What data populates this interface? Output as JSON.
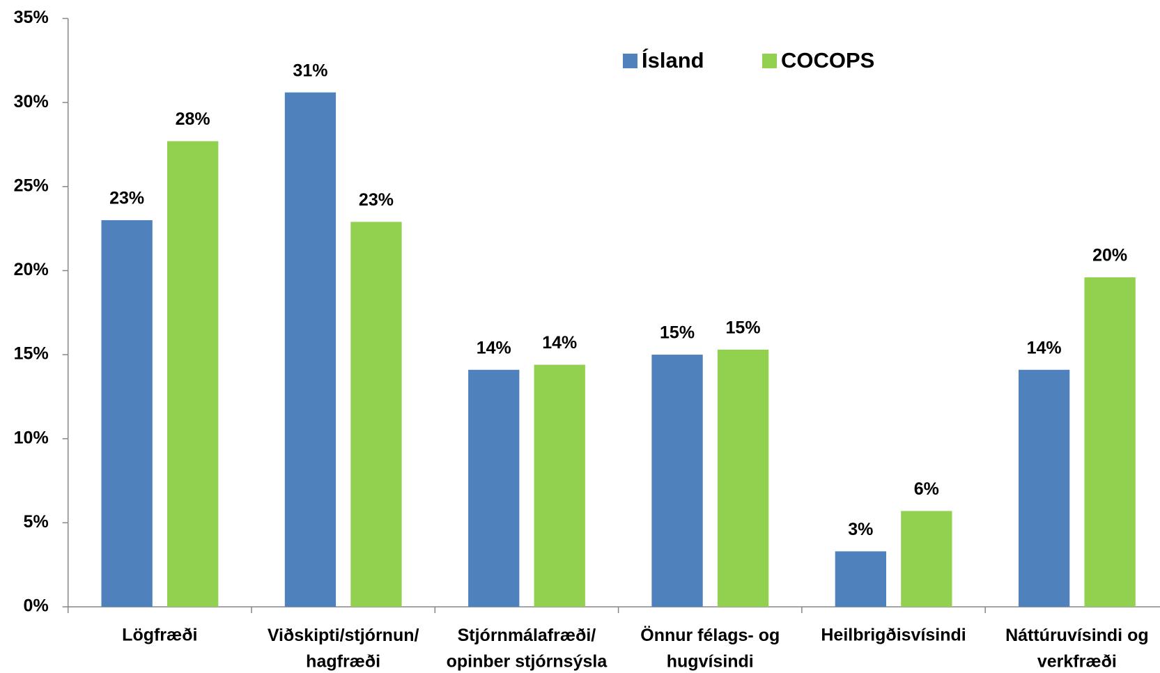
{
  "chart_data": {
    "type": "bar",
    "categories": [
      "Lögfræði",
      "Viðskipti/stjórnun/\nhagfræði",
      "Stjórnmálafræði/\nopinber stjórnsýsla",
      "Önnur félags- og\nhugvísindi",
      "Heilbrigðisvísindi",
      "Náttúruvísindi og\nverkfræði"
    ],
    "series": [
      {
        "name": "Ísland",
        "color": "#4f81bd",
        "values": [
          23.0,
          30.6,
          14.1,
          15.0,
          3.3,
          14.1
        ],
        "value_labels": [
          "23%",
          "31%",
          "14%",
          "15%",
          "3%",
          "14%"
        ]
      },
      {
        "name": "COCOPS",
        "color": "#92d050",
        "values": [
          27.7,
          22.9,
          14.4,
          15.3,
          5.7,
          19.6
        ],
        "value_labels": [
          "28%",
          "23%",
          "14%",
          "15%",
          "6%",
          "20%"
        ]
      }
    ],
    "ylim": [
      0,
      35
    ],
    "yticks": [
      {
        "value": 0,
        "label": "0%"
      },
      {
        "value": 5,
        "label": "5%"
      },
      {
        "value": 10,
        "label": "10%"
      },
      {
        "value": 15,
        "label": "15%"
      },
      {
        "value": 20,
        "label": "20%"
      },
      {
        "value": 25,
        "label": "25%"
      },
      {
        "value": 30,
        "label": "30%"
      },
      {
        "value": 35,
        "label": "35%"
      }
    ],
    "grid": false,
    "legend": "top"
  }
}
